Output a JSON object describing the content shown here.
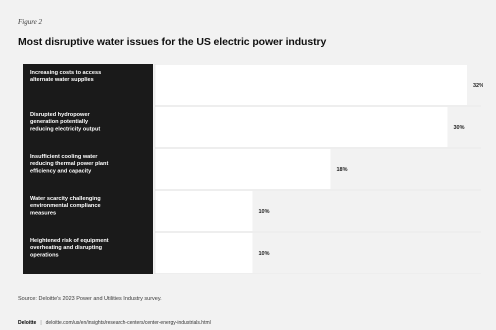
{
  "figure_label": "Figure 2",
  "title": "Most disruptive water issues for the US electric power industry",
  "source": "Source: Deloitte's 2023 Power and Utilities Industry survey.",
  "footer": {
    "brand": "Deloitte",
    "url": "deloitte.com/us/en/insights/research-centers/center-energy-industrials.html"
  },
  "colors": {
    "label_bg": "#1a1a1a",
    "bar": "#ffffff",
    "label_text": "#ffffff",
    "background": "#f2f2f2"
  },
  "chart_data": {
    "type": "bar",
    "orientation": "horizontal",
    "categories": [
      "Increasing costs to access alternate water supplies",
      "Disrupted hydropower generation potentially reducing electricity output",
      "Insufficient cooling water reducing thermal power plant efficiency and capacity",
      "Water scarcity challenging environmental compliance measures",
      "Heightened risk of equipment overheating and disrupting operations"
    ],
    "values": [
      32,
      30,
      18,
      10,
      10
    ],
    "value_labels": [
      "32%",
      "30%",
      "18%",
      "10%",
      "10%"
    ],
    "xlim": [
      0,
      32
    ],
    "grid": false,
    "legend": "none"
  }
}
